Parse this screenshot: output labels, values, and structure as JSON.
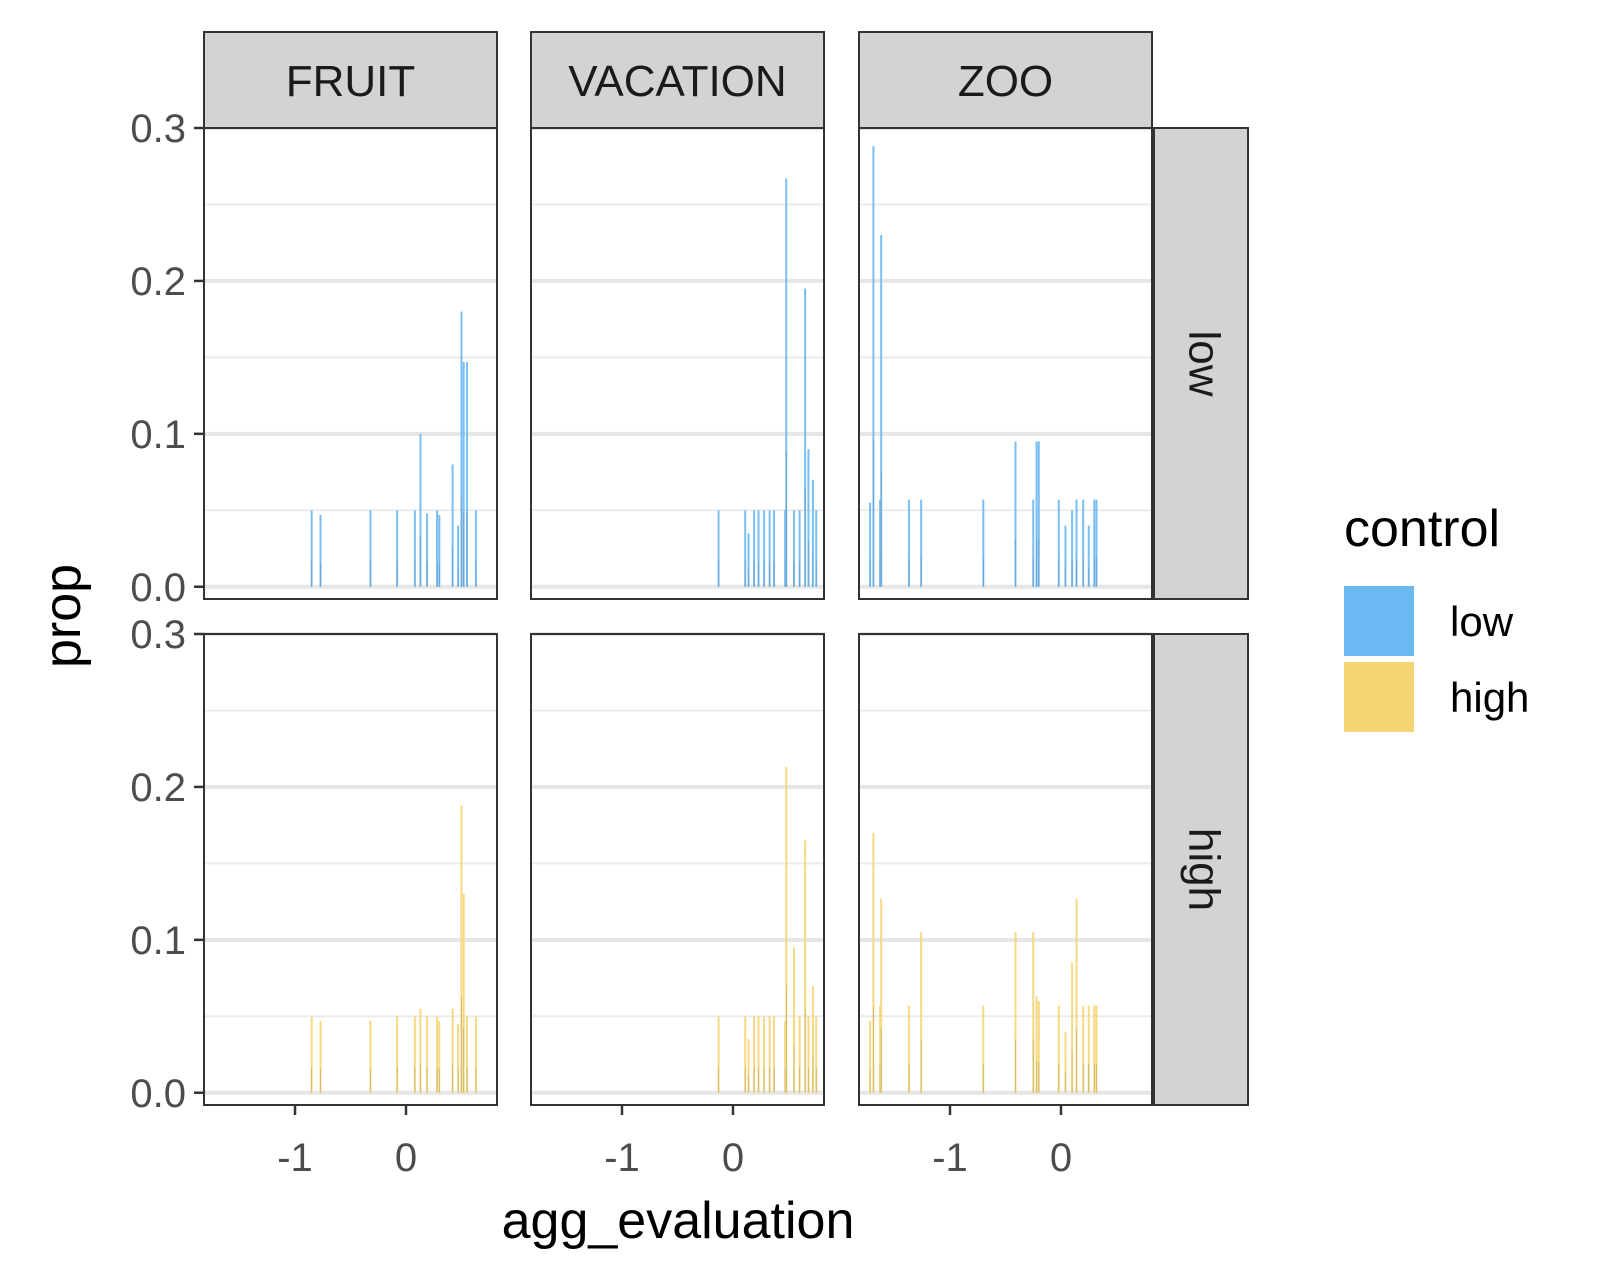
{
  "chart_data": {
    "type": "bar",
    "xlabel": "agg_evaluation",
    "ylabel": "prop",
    "ylim": [
      -0.008,
      0.3
    ],
    "xlim": [
      -1.82,
      0.82
    ],
    "x_ticks": [
      -1,
      0
    ],
    "x_tick_labels": [
      "-1",
      "0"
    ],
    "y_ticks": [
      0.0,
      0.1,
      0.2,
      0.3
    ],
    "y_tick_labels": [
      "0.0",
      "0.1",
      "0.2",
      "0.3"
    ],
    "y_minor_ticks": [
      0.05,
      0.15,
      0.25
    ],
    "grid": true,
    "legend": {
      "title": "control",
      "position": "right",
      "entries": [
        {
          "label": "low",
          "color": "#6cb8f2"
        },
        {
          "label": "high",
          "color": "#f5d574"
        }
      ]
    },
    "facet_columns": [
      "FRUIT",
      "VACATION",
      "ZOO"
    ],
    "facet_rows": [
      "low",
      "high"
    ],
    "panels": [
      {
        "column": "FRUIT",
        "row": "low",
        "control": "low",
        "bars": [
          {
            "x": -0.85,
            "y": 0.05
          },
          {
            "x": -0.77,
            "y": 0.047
          },
          {
            "x": -0.32,
            "y": 0.05
          },
          {
            "x": -0.08,
            "y": 0.05
          },
          {
            "x": 0.08,
            "y": 0.05
          },
          {
            "x": 0.13,
            "y": 0.1
          },
          {
            "x": 0.19,
            "y": 0.048
          },
          {
            "x": 0.28,
            "y": 0.05
          },
          {
            "x": 0.3,
            "y": 0.047
          },
          {
            "x": 0.42,
            "y": 0.08
          },
          {
            "x": 0.47,
            "y": 0.04
          },
          {
            "x": 0.5,
            "y": 0.18
          },
          {
            "x": 0.52,
            "y": 0.147
          },
          {
            "x": 0.55,
            "y": 0.147
          },
          {
            "x": 0.63,
            "y": 0.05
          }
        ]
      },
      {
        "column": "VACATION",
        "row": "low",
        "control": "low",
        "bars": [
          {
            "x": -0.13,
            "y": 0.05
          },
          {
            "x": 0.11,
            "y": 0.05
          },
          {
            "x": 0.14,
            "y": 0.035
          },
          {
            "x": 0.19,
            "y": 0.05
          },
          {
            "x": 0.23,
            "y": 0.05
          },
          {
            "x": 0.28,
            "y": 0.05
          },
          {
            "x": 0.33,
            "y": 0.05
          },
          {
            "x": 0.37,
            "y": 0.05
          },
          {
            "x": 0.47,
            "y": 0.05
          },
          {
            "x": 0.48,
            "y": 0.267
          },
          {
            "x": 0.55,
            "y": 0.05
          },
          {
            "x": 0.6,
            "y": 0.05
          },
          {
            "x": 0.65,
            "y": 0.195
          },
          {
            "x": 0.68,
            "y": 0.09
          },
          {
            "x": 0.72,
            "y": 0.07
          },
          {
            "x": 0.75,
            "y": 0.05
          }
        ]
      },
      {
        "column": "ZOO",
        "row": "low",
        "control": "low",
        "bars": [
          {
            "x": -1.72,
            "y": 0.055
          },
          {
            "x": -1.69,
            "y": 0.288
          },
          {
            "x": -1.63,
            "y": 0.057
          },
          {
            "x": -1.62,
            "y": 0.23
          },
          {
            "x": -1.37,
            "y": 0.057
          },
          {
            "x": -1.26,
            "y": 0.057
          },
          {
            "x": -0.7,
            "y": 0.057
          },
          {
            "x": -0.41,
            "y": 0.095
          },
          {
            "x": -0.25,
            "y": 0.057
          },
          {
            "x": -0.22,
            "y": 0.095
          },
          {
            "x": -0.2,
            "y": 0.095
          },
          {
            "x": -0.02,
            "y": 0.057
          },
          {
            "x": 0.04,
            "y": 0.04
          },
          {
            "x": 0.1,
            "y": 0.05
          },
          {
            "x": 0.14,
            "y": 0.057
          },
          {
            "x": 0.2,
            "y": 0.057
          },
          {
            "x": 0.25,
            "y": 0.04
          },
          {
            "x": 0.3,
            "y": 0.057
          },
          {
            "x": 0.32,
            "y": 0.057
          }
        ]
      },
      {
        "column": "FRUIT",
        "row": "high",
        "control": "high",
        "bars": [
          {
            "x": -0.85,
            "y": 0.05
          },
          {
            "x": -0.77,
            "y": 0.047
          },
          {
            "x": -0.32,
            "y": 0.047
          },
          {
            "x": -0.08,
            "y": 0.05
          },
          {
            "x": 0.08,
            "y": 0.05
          },
          {
            "x": 0.13,
            "y": 0.055
          },
          {
            "x": 0.19,
            "y": 0.05
          },
          {
            "x": 0.28,
            "y": 0.05
          },
          {
            "x": 0.3,
            "y": 0.047
          },
          {
            "x": 0.42,
            "y": 0.055
          },
          {
            "x": 0.47,
            "y": 0.045
          },
          {
            "x": 0.5,
            "y": 0.188
          },
          {
            "x": 0.52,
            "y": 0.13
          },
          {
            "x": 0.55,
            "y": 0.05
          },
          {
            "x": 0.63,
            "y": 0.05
          }
        ]
      },
      {
        "column": "VACATION",
        "row": "high",
        "control": "high",
        "bars": [
          {
            "x": -0.13,
            "y": 0.05
          },
          {
            "x": 0.11,
            "y": 0.05
          },
          {
            "x": 0.14,
            "y": 0.035
          },
          {
            "x": 0.19,
            "y": 0.05
          },
          {
            "x": 0.23,
            "y": 0.05
          },
          {
            "x": 0.28,
            "y": 0.05
          },
          {
            "x": 0.33,
            "y": 0.05
          },
          {
            "x": 0.37,
            "y": 0.05
          },
          {
            "x": 0.47,
            "y": 0.047
          },
          {
            "x": 0.48,
            "y": 0.213
          },
          {
            "x": 0.55,
            "y": 0.095
          },
          {
            "x": 0.6,
            "y": 0.05
          },
          {
            "x": 0.65,
            "y": 0.165
          },
          {
            "x": 0.68,
            "y": 0.05
          },
          {
            "x": 0.72,
            "y": 0.07
          },
          {
            "x": 0.75,
            "y": 0.05
          }
        ]
      },
      {
        "column": "ZOO",
        "row": "high",
        "control": "high",
        "bars": [
          {
            "x": -1.72,
            "y": 0.047
          },
          {
            "x": -1.69,
            "y": 0.17
          },
          {
            "x": -1.63,
            "y": 0.057
          },
          {
            "x": -1.62,
            "y": 0.127
          },
          {
            "x": -1.37,
            "y": 0.057
          },
          {
            "x": -1.26,
            "y": 0.105
          },
          {
            "x": -0.7,
            "y": 0.057
          },
          {
            "x": -0.41,
            "y": 0.105
          },
          {
            "x": -0.25,
            "y": 0.105
          },
          {
            "x": -0.22,
            "y": 0.063
          },
          {
            "x": -0.2,
            "y": 0.06
          },
          {
            "x": -0.02,
            "y": 0.057
          },
          {
            "x": 0.04,
            "y": 0.04
          },
          {
            "x": 0.1,
            "y": 0.085
          },
          {
            "x": 0.14,
            "y": 0.127
          },
          {
            "x": 0.2,
            "y": 0.057
          },
          {
            "x": 0.25,
            "y": 0.057
          },
          {
            "x": 0.3,
            "y": 0.057
          },
          {
            "x": 0.32,
            "y": 0.057
          }
        ]
      }
    ]
  }
}
